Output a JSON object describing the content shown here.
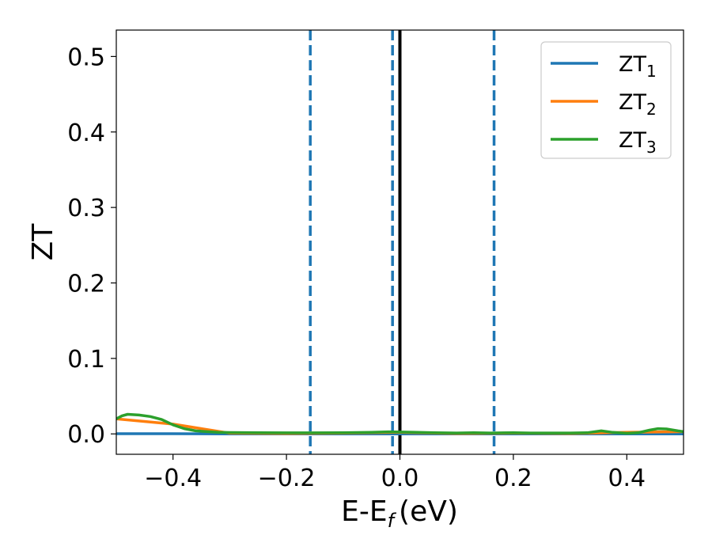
{
  "chart_data": {
    "type": "line",
    "xlabel": "E-E",
    "xlabel_sub": "f",
    "xlabel_unit": "(eV)",
    "ylabel": "ZT",
    "xlim": [
      -0.5,
      0.5
    ],
    "ylim": [
      -0.027,
      0.535
    ],
    "xticks": [
      -0.4,
      -0.2,
      0.0,
      0.2,
      0.4
    ],
    "xtick_labels": [
      "−0.4",
      "−0.2",
      "0.0",
      "0.2",
      "0.4"
    ],
    "yticks": [
      0.0,
      0.1,
      0.2,
      0.3,
      0.4,
      0.5
    ],
    "ytick_labels": [
      "0.0",
      "0.1",
      "0.2",
      "0.3",
      "0.4",
      "0.5"
    ],
    "grid": false,
    "legend_placement": "top-right",
    "series": [
      {
        "name": "ZT",
        "sub": "1",
        "color": "#1f77b4",
        "x": [
          -0.5,
          -0.4,
          -0.3,
          -0.2,
          -0.1,
          0.0,
          0.1,
          0.2,
          0.3,
          0.4,
          0.5
        ],
        "y": [
          0.0003,
          0.0003,
          0.0001,
          0.0,
          0.0,
          0.0001,
          0.0,
          0.0,
          0.0,
          0.0,
          0.0
        ]
      },
      {
        "name": "ZT",
        "sub": "2",
        "color": "#ff7f0e",
        "x": [
          -0.5,
          -0.4,
          -0.3,
          -0.2,
          -0.1,
          0.0,
          0.1,
          0.2,
          0.3,
          0.4,
          0.5
        ],
        "y": [
          0.02,
          0.013,
          0.001,
          0.0005,
          0.001,
          0.002,
          0.0005,
          0.001,
          0.0005,
          0.002,
          0.003
        ]
      },
      {
        "name": "ZT",
        "sub": "3",
        "color": "#2ca02c",
        "x": [
          -0.5,
          -0.49,
          -0.48,
          -0.46,
          -0.44,
          -0.42,
          -0.4,
          -0.38,
          -0.36,
          -0.34,
          -0.32,
          -0.3,
          -0.25,
          -0.2,
          -0.15,
          -0.1,
          -0.05,
          -0.02,
          0.0,
          0.03,
          0.06,
          0.1,
          0.13,
          0.16,
          0.2,
          0.23,
          0.26,
          0.3,
          0.33,
          0.355,
          0.375,
          0.4,
          0.42,
          0.44,
          0.455,
          0.47,
          0.49,
          0.5
        ],
        "y": [
          0.02,
          0.024,
          0.026,
          0.025,
          0.023,
          0.019,
          0.012,
          0.007,
          0.004,
          0.003,
          0.0022,
          0.0018,
          0.0015,
          0.0014,
          0.0014,
          0.0016,
          0.0022,
          0.0028,
          0.0025,
          0.0022,
          0.0016,
          0.0012,
          0.0016,
          0.0012,
          0.0016,
          0.0012,
          0.0012,
          0.0012,
          0.0015,
          0.004,
          0.002,
          0.0008,
          0.0015,
          0.005,
          0.007,
          0.0065,
          0.004,
          0.003
        ]
      }
    ],
    "vlines": [
      {
        "x": -0.158,
        "style": "dashed",
        "color": "#1f77b4"
      },
      {
        "x": -0.013,
        "style": "dashed",
        "color": "#1f77b4"
      },
      {
        "x": 0.0,
        "style": "solid",
        "color": "#000000"
      },
      {
        "x": 0.166,
        "style": "dashed",
        "color": "#1f77b4"
      }
    ]
  }
}
